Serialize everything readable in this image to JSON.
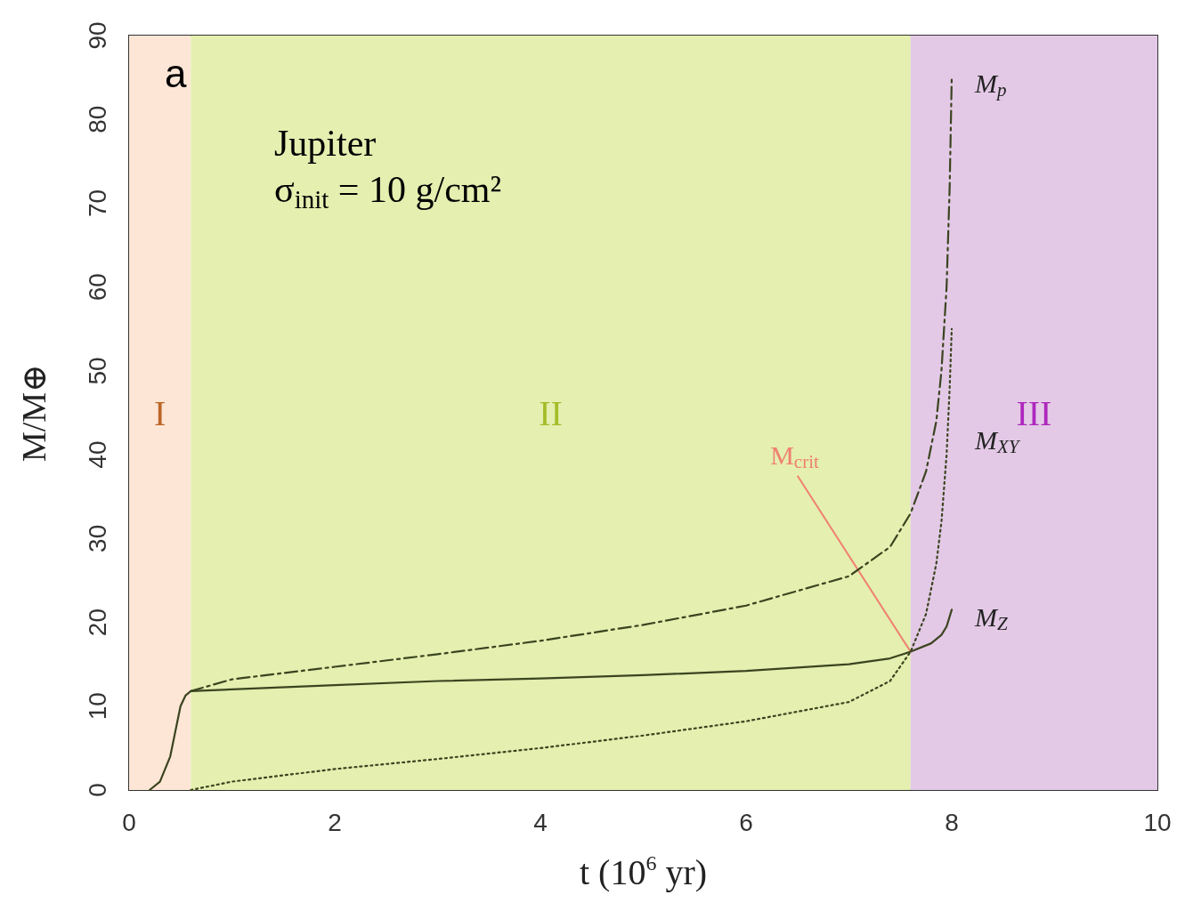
{
  "chart_data": {
    "type": "line",
    "xlabel": "t (10$^{6}$ yr)",
    "ylabel": "M/M⊕",
    "xlim": [
      0,
      10
    ],
    "xticks": [
      0,
      2,
      4,
      6,
      8,
      10
    ],
    "ylim": [
      0,
      90
    ],
    "yticks": [
      0,
      10,
      20,
      30,
      40,
      50,
      60,
      70,
      80,
      90
    ],
    "grid": false,
    "marker": "none",
    "series": [
      {
        "name": "M$_{p}$",
        "color": "#3b4420",
        "line_style": "dashed",
        "x": [
          0.6,
          1,
          2,
          3,
          4,
          5,
          6,
          7,
          7.4,
          7.6,
          7.75,
          7.85,
          7.9,
          7.95,
          7.98,
          8.0
        ],
        "values": [
          11.8,
          13.2,
          14.7,
          16.2,
          17.8,
          19.7,
          22,
          25.5,
          29,
          33,
          38,
          44,
          50,
          60,
          72,
          85
        ]
      },
      {
        "name": "M$_{XY}$",
        "color": "#3b4420",
        "line_style": "dotted",
        "x": [
          0.6,
          1,
          2,
          3,
          4,
          5,
          6,
          7,
          7.4,
          7.6,
          7.75,
          7.85,
          7.9,
          7.95,
          7.98,
          8.0
        ],
        "values": [
          0,
          1,
          2.5,
          3.7,
          5,
          6.5,
          8.2,
          10.5,
          13,
          16.5,
          21,
          27,
          32,
          40,
          48,
          55
        ]
      },
      {
        "name": "M$_{Z}$",
        "color": "#3b4420",
        "line_style": "solid",
        "x": [
          0.2,
          0.3,
          0.4,
          0.45,
          0.5,
          0.55,
          0.6,
          1,
          2,
          3,
          4,
          5,
          6,
          7,
          7.4,
          7.6,
          7.8,
          7.9,
          7.95,
          8.0
        ],
        "values": [
          0,
          1,
          4,
          7,
          10,
          11.3,
          11.8,
          12,
          12.5,
          13,
          13.3,
          13.7,
          14.2,
          15,
          15.7,
          16.5,
          17.5,
          18.5,
          19.5,
          21.5
        ]
      }
    ],
    "bands": [
      {
        "axis": "x",
        "from": 0,
        "to": 0.6,
        "label": "I",
        "color": "#fde6d6"
      },
      {
        "axis": "x",
        "from": 0.6,
        "to": 7.6,
        "label": "II",
        "color": "#e4efb0"
      },
      {
        "axis": "x",
        "from": 7.6,
        "to": 10,
        "label": "III",
        "color": "#e3c9e6"
      }
    ],
    "annotations": [
      "a",
      "Jupiter",
      "σ$_{init}$ = 10 g/cm²",
      {
        "text": "M$_{crit}$",
        "x": 7.6,
        "y": 16.5
      }
    ]
  }
}
